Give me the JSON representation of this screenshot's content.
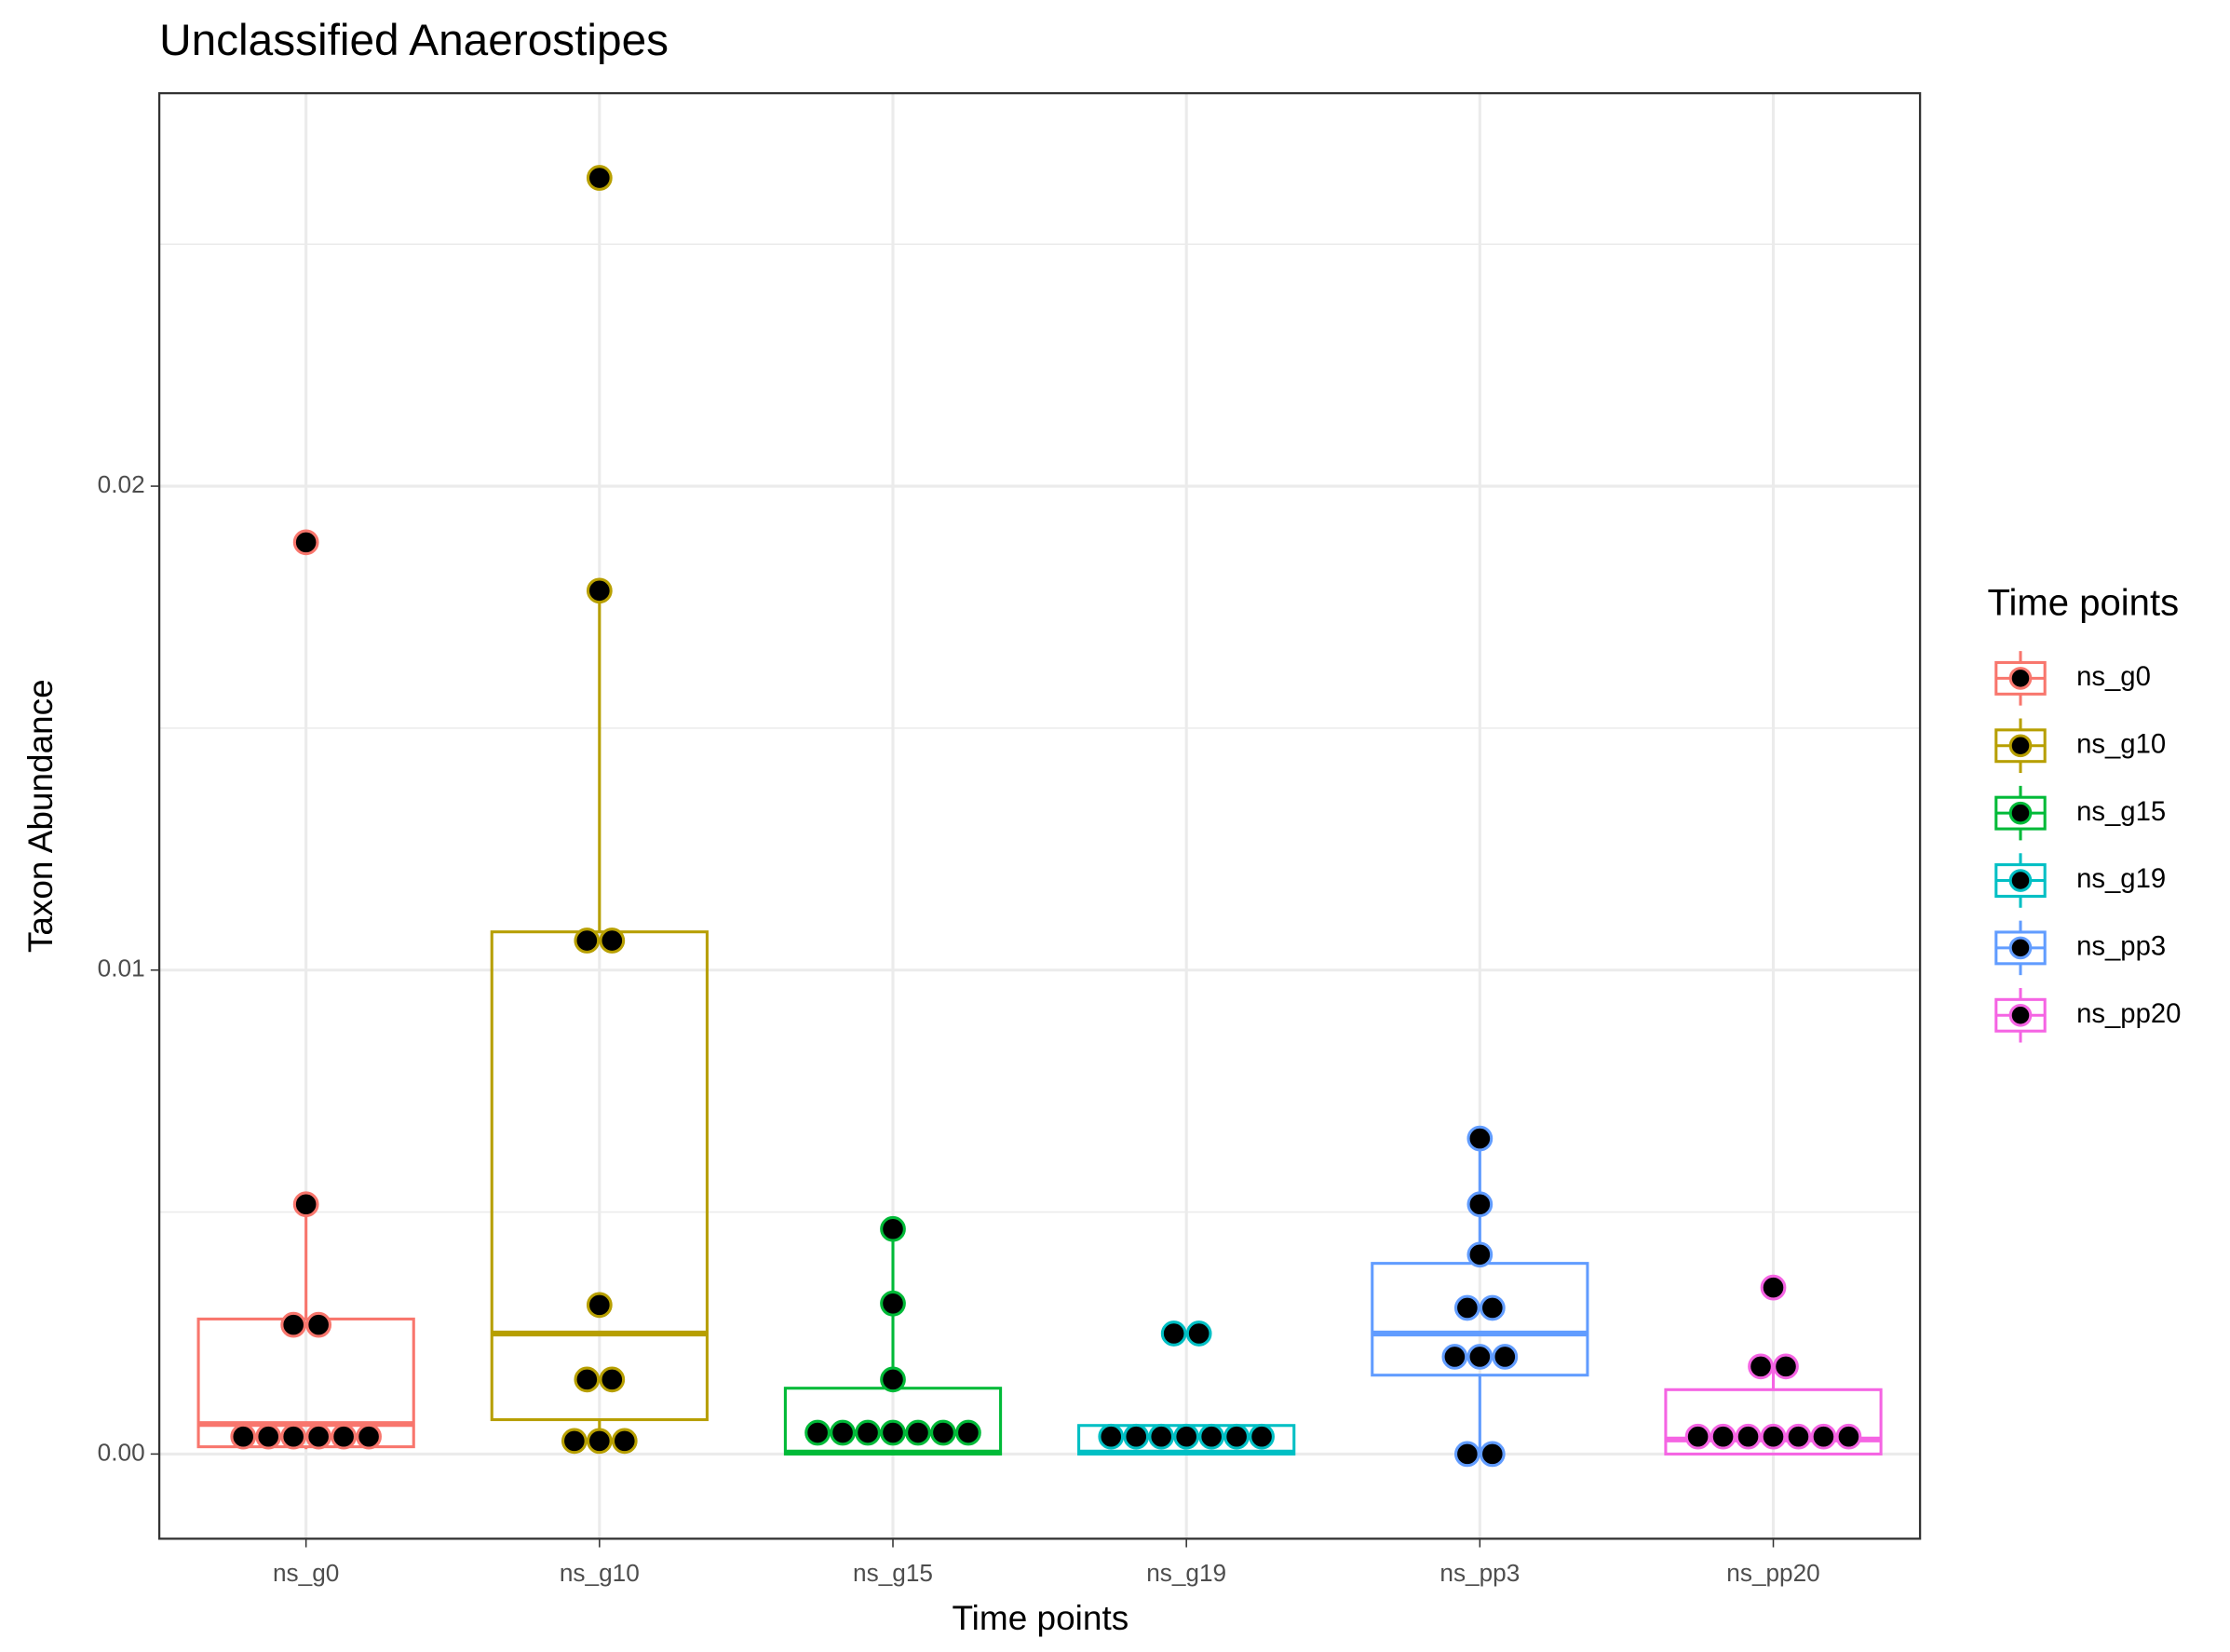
{
  "chart_data": {
    "type": "boxplot",
    "title": "Unclassified  Anaerostipes",
    "x_label": "Time points",
    "y_label": "Taxon Abundance",
    "legend_title": "Time points",
    "legend_position": "right",
    "grid": true,
    "categories": [
      "ns_g0",
      "ns_g10",
      "ns_g15",
      "ns_g19",
      "ns_pp3",
      "ns_pp20"
    ],
    "ylim": [
      -0.00175,
      0.02812
    ],
    "yticks": [
      {
        "value": 0,
        "label": "0.00"
      },
      0.01,
      0.02
    ],
    "minor_yticks": [
      0.005,
      0.015,
      0.025
    ],
    "point_color": "#000000",
    "series": [
      {
        "name": "ns_g0",
        "color": "#F8766D",
        "whislo": 0.0001,
        "q1": 0.00015,
        "med": 0.00062,
        "q3": 0.00279,
        "whishi": 0.00516,
        "points": [
          0.01884,
          0.00516,
          0.00267,
          0.00267,
          0.00036,
          0.00036,
          0.00036,
          0.00036,
          0.00036,
          0.00036
        ]
      },
      {
        "name": "ns_g10",
        "color": "#B79F00",
        "whislo": 0.00027,
        "q1": 0.00071,
        "med": 0.00249,
        "q3": 0.01079,
        "whishi": 0.01784,
        "points": [
          0.02637,
          0.01784,
          0.01061,
          0.01061,
          0.00308,
          0.00154,
          0.00154,
          0.00027,
          0.00027,
          0.00027
        ]
      },
      {
        "name": "ns_g15",
        "color": "#00BA38",
        "whislo": 0,
        "q1": 0,
        "med": 3e-05,
        "q3": 0.00136,
        "whishi": 0.00465,
        "points": [
          0.00465,
          0.00311,
          0.00154,
          0.00044,
          0.00044,
          0.00044,
          0.00044,
          0.00044,
          0.00044,
          0.00044
        ]
      },
      {
        "name": "ns_g19",
        "color": "#00BFC4",
        "whislo": 0,
        "q1": 0,
        "med": 3e-05,
        "q3": 0.00059,
        "whishi": 0.00059,
        "points": [
          0.00249,
          0.00249,
          0.00036,
          0.00036,
          0.00036,
          0.00036,
          0.00036,
          0.00036,
          0.00036
        ]
      },
      {
        "name": "ns_pp3",
        "color": "#619CFF",
        "whislo": 0,
        "q1": 0.00163,
        "med": 0.00249,
        "q3": 0.00394,
        "whishi": 0.00652,
        "points": [
          0.00652,
          0.00516,
          0.00412,
          0.00302,
          0.00302,
          0.00201,
          0.00201,
          0.00201,
          0,
          0
        ]
      },
      {
        "name": "ns_pp20",
        "color": "#F564E3",
        "whislo": 0,
        "q1": 0,
        "med": 0.0003,
        "q3": 0.00133,
        "whishi": 0.00181,
        "points": [
          0.00344,
          0.00181,
          0.00181,
          0.00036,
          0.00036,
          0.00036,
          0.00036,
          0.00036,
          0.00036,
          0.00036
        ]
      }
    ]
  }
}
